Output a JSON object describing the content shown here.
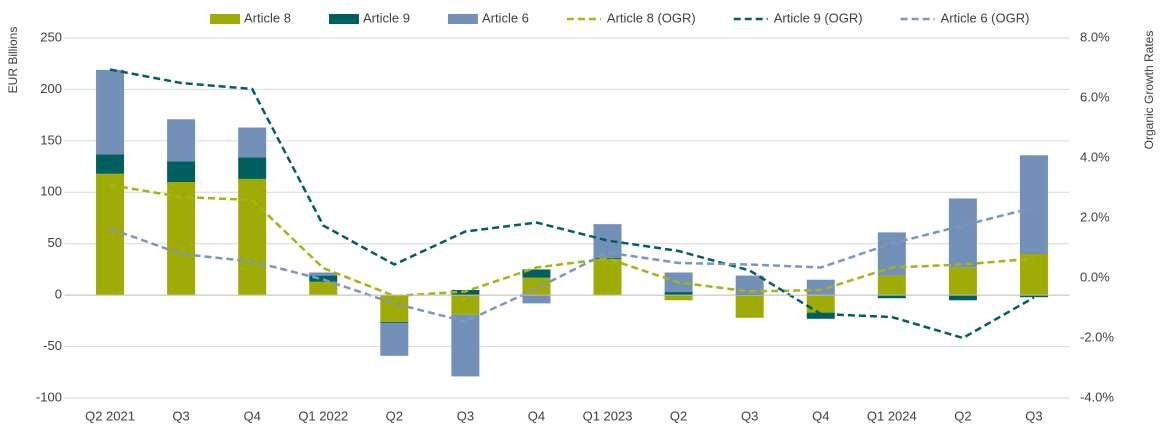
{
  "chart_data": {
    "type": "bar",
    "stacked": true,
    "categories": [
      "Q2 2021",
      "Q3",
      "Q4",
      "Q1 2022",
      "Q2",
      "Q3",
      "Q4",
      "Q1 2023",
      "Q2",
      "Q3",
      "Q4",
      "Q1 2024",
      "Q2",
      "Q3"
    ],
    "series": [
      {
        "name": "Article 8",
        "type": "bar",
        "color": "#9fac06",
        "values": [
          118,
          110,
          113,
          13,
          -26,
          -19,
          17,
          35,
          -5,
          -22,
          -17,
          19,
          27,
          40
        ]
      },
      {
        "name": "Article 9",
        "type": "bar",
        "color": "#00605f",
        "values": [
          19,
          20,
          21,
          6,
          -1,
          5,
          8,
          1,
          3,
          1,
          -6,
          -3,
          -5,
          -2
        ]
      },
      {
        "name": "Article 6",
        "type": "bar",
        "color": "#7390b8",
        "values": [
          82,
          41,
          29,
          3,
          -32,
          -60,
          -8,
          33,
          19,
          18,
          15,
          42,
          67,
          96
        ]
      },
      {
        "name": "Article 8 (OGR)",
        "type": "line",
        "dashed": true,
        "axis": "y2",
        "color": "#a4b50e",
        "values": [
          3.1,
          2.7,
          2.6,
          0.33,
          -0.6,
          -0.45,
          0.35,
          0.65,
          -0.15,
          -0.45,
          -0.4,
          0.35,
          0.45,
          0.65
        ]
      },
      {
        "name": "Article 9 (OGR)",
        "type": "line",
        "dashed": true,
        "axis": "y2",
        "color": "#00605f",
        "values": [
          6.95,
          6.5,
          6.3,
          1.75,
          0.45,
          1.55,
          1.85,
          1.25,
          0.9,
          0.25,
          -1.2,
          -1.3,
          -2.0,
          -0.65
        ]
      },
      {
        "name": "Article 6 (OGR)",
        "type": "line",
        "dashed": true,
        "axis": "y2",
        "color": "#7b96c0",
        "values": [
          1.65,
          0.8,
          0.55,
          -0.05,
          -0.85,
          -1.45,
          -0.35,
          0.85,
          0.5,
          0.45,
          0.35,
          1.15,
          1.75,
          2.35
        ]
      }
    ],
    "y_label": "EUR Billions",
    "y2_label": "Organic Growth Rates",
    "ylim": [
      -100,
      250
    ],
    "yticks": [
      -100,
      -50,
      0,
      50,
      100,
      150,
      200,
      250
    ],
    "y2lim": [
      -4,
      8
    ],
    "y2ticks": [
      {
        "value": -4,
        "label": "-4.0%"
      },
      {
        "value": -2,
        "label": "-2.0%"
      },
      {
        "value": 0,
        "label": "0.0%"
      },
      {
        "value": 2,
        "label": "2.0%"
      },
      {
        "value": 4,
        "label": "4.0%"
      },
      {
        "value": 6,
        "label": "6.0%"
      },
      {
        "value": 8,
        "label": "8.0%"
      }
    ],
    "grid": true,
    "legend": "top"
  }
}
